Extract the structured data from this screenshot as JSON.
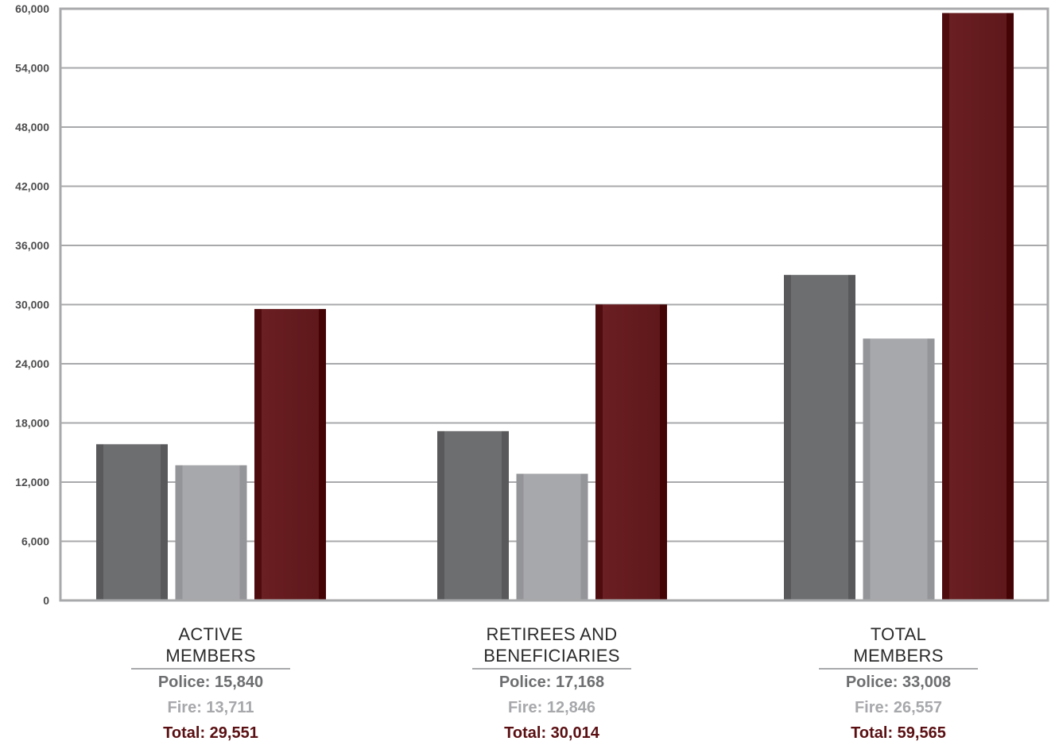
{
  "chart_data": {
    "type": "bar",
    "categories": [
      [
        "ACTIVE",
        "MEMBERS"
      ],
      [
        "RETIREES AND",
        "BENEFICIARIES"
      ],
      [
        "TOTAL",
        "MEMBERS"
      ]
    ],
    "series": [
      {
        "key": "police",
        "color": "#6d6e70",
        "values": [
          15840,
          17168,
          33008
        ]
      },
      {
        "key": "fire",
        "color": "#a7a8ab",
        "values": [
          13711,
          12846,
          26557
        ]
      },
      {
        "key": "total",
        "color": "#6a1f22",
        "values": [
          29551,
          30014,
          59565
        ]
      }
    ],
    "value_labels": [
      [
        "Police: 15,840",
        "Fire: 13,711",
        "Total: 29,551"
      ],
      [
        "Police: 17,168",
        "Fire: 12,846",
        "Total: 30,014"
      ],
      [
        "Police: 33,008",
        "Fire: 26,557",
        "Total: 59,565"
      ]
    ],
    "yticks": [
      0,
      6000,
      12000,
      18000,
      24000,
      30000,
      36000,
      42000,
      48000,
      54000,
      60000
    ],
    "ytick_labels": [
      "0",
      "6,000",
      "12,000",
      "18,000",
      "24,000",
      "30,000",
      "36,000",
      "42,000",
      "48,000",
      "54,000",
      "60,000"
    ],
    "ylim": [
      0,
      60000
    ],
    "grid": true,
    "legend": "none",
    "colors": {
      "police": "#6d6e70",
      "fire": "#a7a8ab",
      "total": "#6a1f22",
      "grid": "#a8a9ab",
      "frame": "#a8a9ab"
    }
  }
}
